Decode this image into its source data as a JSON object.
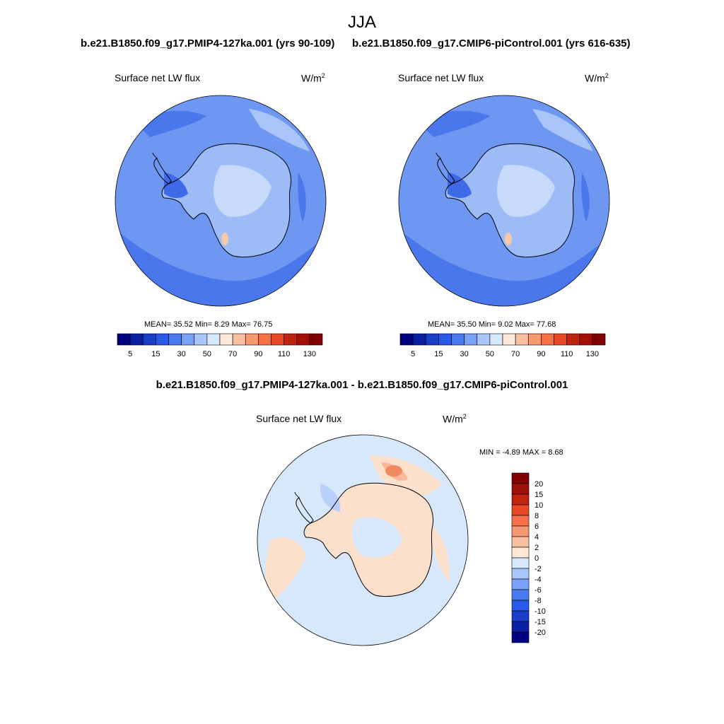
{
  "figure": {
    "suptitle": "JJA",
    "panel1_title": "b.e21.B1850.f09_g17.PMIP4-127ka.001 (yrs 90-109)",
    "panel2_title": "b.e21.B1850.f09_g17.CMIP6-piControl.001 (yrs 616-635)",
    "diff_title": "b.e21.B1850.f09_g17.PMIP4-127ka.001 - b.e21.B1850.f09_g17.CMIP6-piControl.001"
  },
  "chart_data": [
    {
      "type": "heatmap",
      "projection": "south-polar-stereographic",
      "title": "b.e21.B1850.f09_g17.PMIP4-127ka.001 (yrs 90-109)",
      "variable": "Surface net LW flux",
      "units_base": "W/m",
      "units_exp": "2",
      "stats": {
        "mean_label": "MEAN=",
        "mean": "35.52",
        "min_label": "Min=",
        "min": "8.29",
        "max_label": "Max=",
        "max": "76.75"
      },
      "colorbar": {
        "orientation": "horizontal",
        "levels": [
          5,
          10,
          15,
          20,
          30,
          40,
          50,
          60,
          70,
          80,
          90,
          100,
          110,
          120,
          130
        ],
        "tick_labels": [
          "5",
          "15",
          "30",
          "50",
          "70",
          "90",
          "110",
          "130"
        ],
        "colors": [
          "#000080",
          "#0a20a0",
          "#1a3ec8",
          "#2a5ae8",
          "#4a7af0",
          "#7aa0f8",
          "#a8c6fa",
          "#d8e8fc",
          "#fde8d8",
          "#f8c0a0",
          "#f89870",
          "#f87048",
          "#e84828",
          "#c02410",
          "#a01008",
          "#800000"
        ]
      }
    },
    {
      "type": "heatmap",
      "projection": "south-polar-stereographic",
      "title": "b.e21.B1850.f09_g17.CMIP6-piControl.001 (yrs 616-635)",
      "variable": "Surface net LW flux",
      "units_base": "W/m",
      "units_exp": "2",
      "stats": {
        "mean_label": "MEAN=",
        "mean": "35.50",
        "min_label": "Min=",
        "min": "9.02",
        "max_label": "Max=",
        "max": "77.68"
      },
      "colorbar": {
        "orientation": "horizontal",
        "levels": [
          5,
          10,
          15,
          20,
          30,
          40,
          50,
          60,
          70,
          80,
          90,
          100,
          110,
          120,
          130
        ],
        "tick_labels": [
          "5",
          "15",
          "30",
          "50",
          "70",
          "90",
          "110",
          "130"
        ],
        "colors": [
          "#000080",
          "#0a20a0",
          "#1a3ec8",
          "#2a5ae8",
          "#4a7af0",
          "#7aa0f8",
          "#a8c6fa",
          "#d8e8fc",
          "#fde8d8",
          "#f8c0a0",
          "#f89870",
          "#f87048",
          "#e84828",
          "#c02410",
          "#a01008",
          "#800000"
        ]
      }
    },
    {
      "type": "heatmap",
      "projection": "south-polar-stereographic",
      "title": "b.e21.B1850.f09_g17.PMIP4-127ka.001 - b.e21.B1850.f09_g17.CMIP6-piControl.001",
      "variable": "Surface net LW flux",
      "units_base": "W/m",
      "units_exp": "2",
      "stats": {
        "min_label": "MIN =",
        "min": "-4.89",
        "max_label": "MAX =",
        "max": "8.68"
      },
      "colorbar": {
        "orientation": "vertical",
        "levels": [
          20,
          15,
          10,
          8,
          6,
          4,
          2,
          0,
          -2,
          -4,
          -6,
          -8,
          -10,
          -15,
          -20
        ],
        "tick_labels": [
          "20",
          "15",
          "10",
          "8",
          "6",
          "4",
          "2",
          "0",
          "-2",
          "-4",
          "-6",
          "-8",
          "-10",
          "-15",
          "-20"
        ],
        "colors": [
          "#800000",
          "#a01008",
          "#c02410",
          "#e84828",
          "#f87048",
          "#f89870",
          "#f8c0a0",
          "#fde8d8",
          "#d8e8fc",
          "#a8c6fa",
          "#7aa0f8",
          "#4a7af0",
          "#2a5ae8",
          "#1a3ec8",
          "#0a20a0",
          "#000080"
        ]
      }
    }
  ],
  "map_colors": {
    "ocean_base": "#6e97f2",
    "ocean_dark": "#4a78ec",
    "ocean_light": "#a8c4f8",
    "ice_light": "#c8dafa",
    "ice_mid": "#9dbcf7",
    "peninsula": "#3e6ae8",
    "hot_spot": "#f8c8a8",
    "diff_base": "#d8e8fc",
    "diff_pos": "#fde0cc",
    "diff_pos2": "#f8b898",
    "diff_pos3": "#f08860",
    "diff_neg": "#b8d0fa",
    "coast": "#000000"
  }
}
